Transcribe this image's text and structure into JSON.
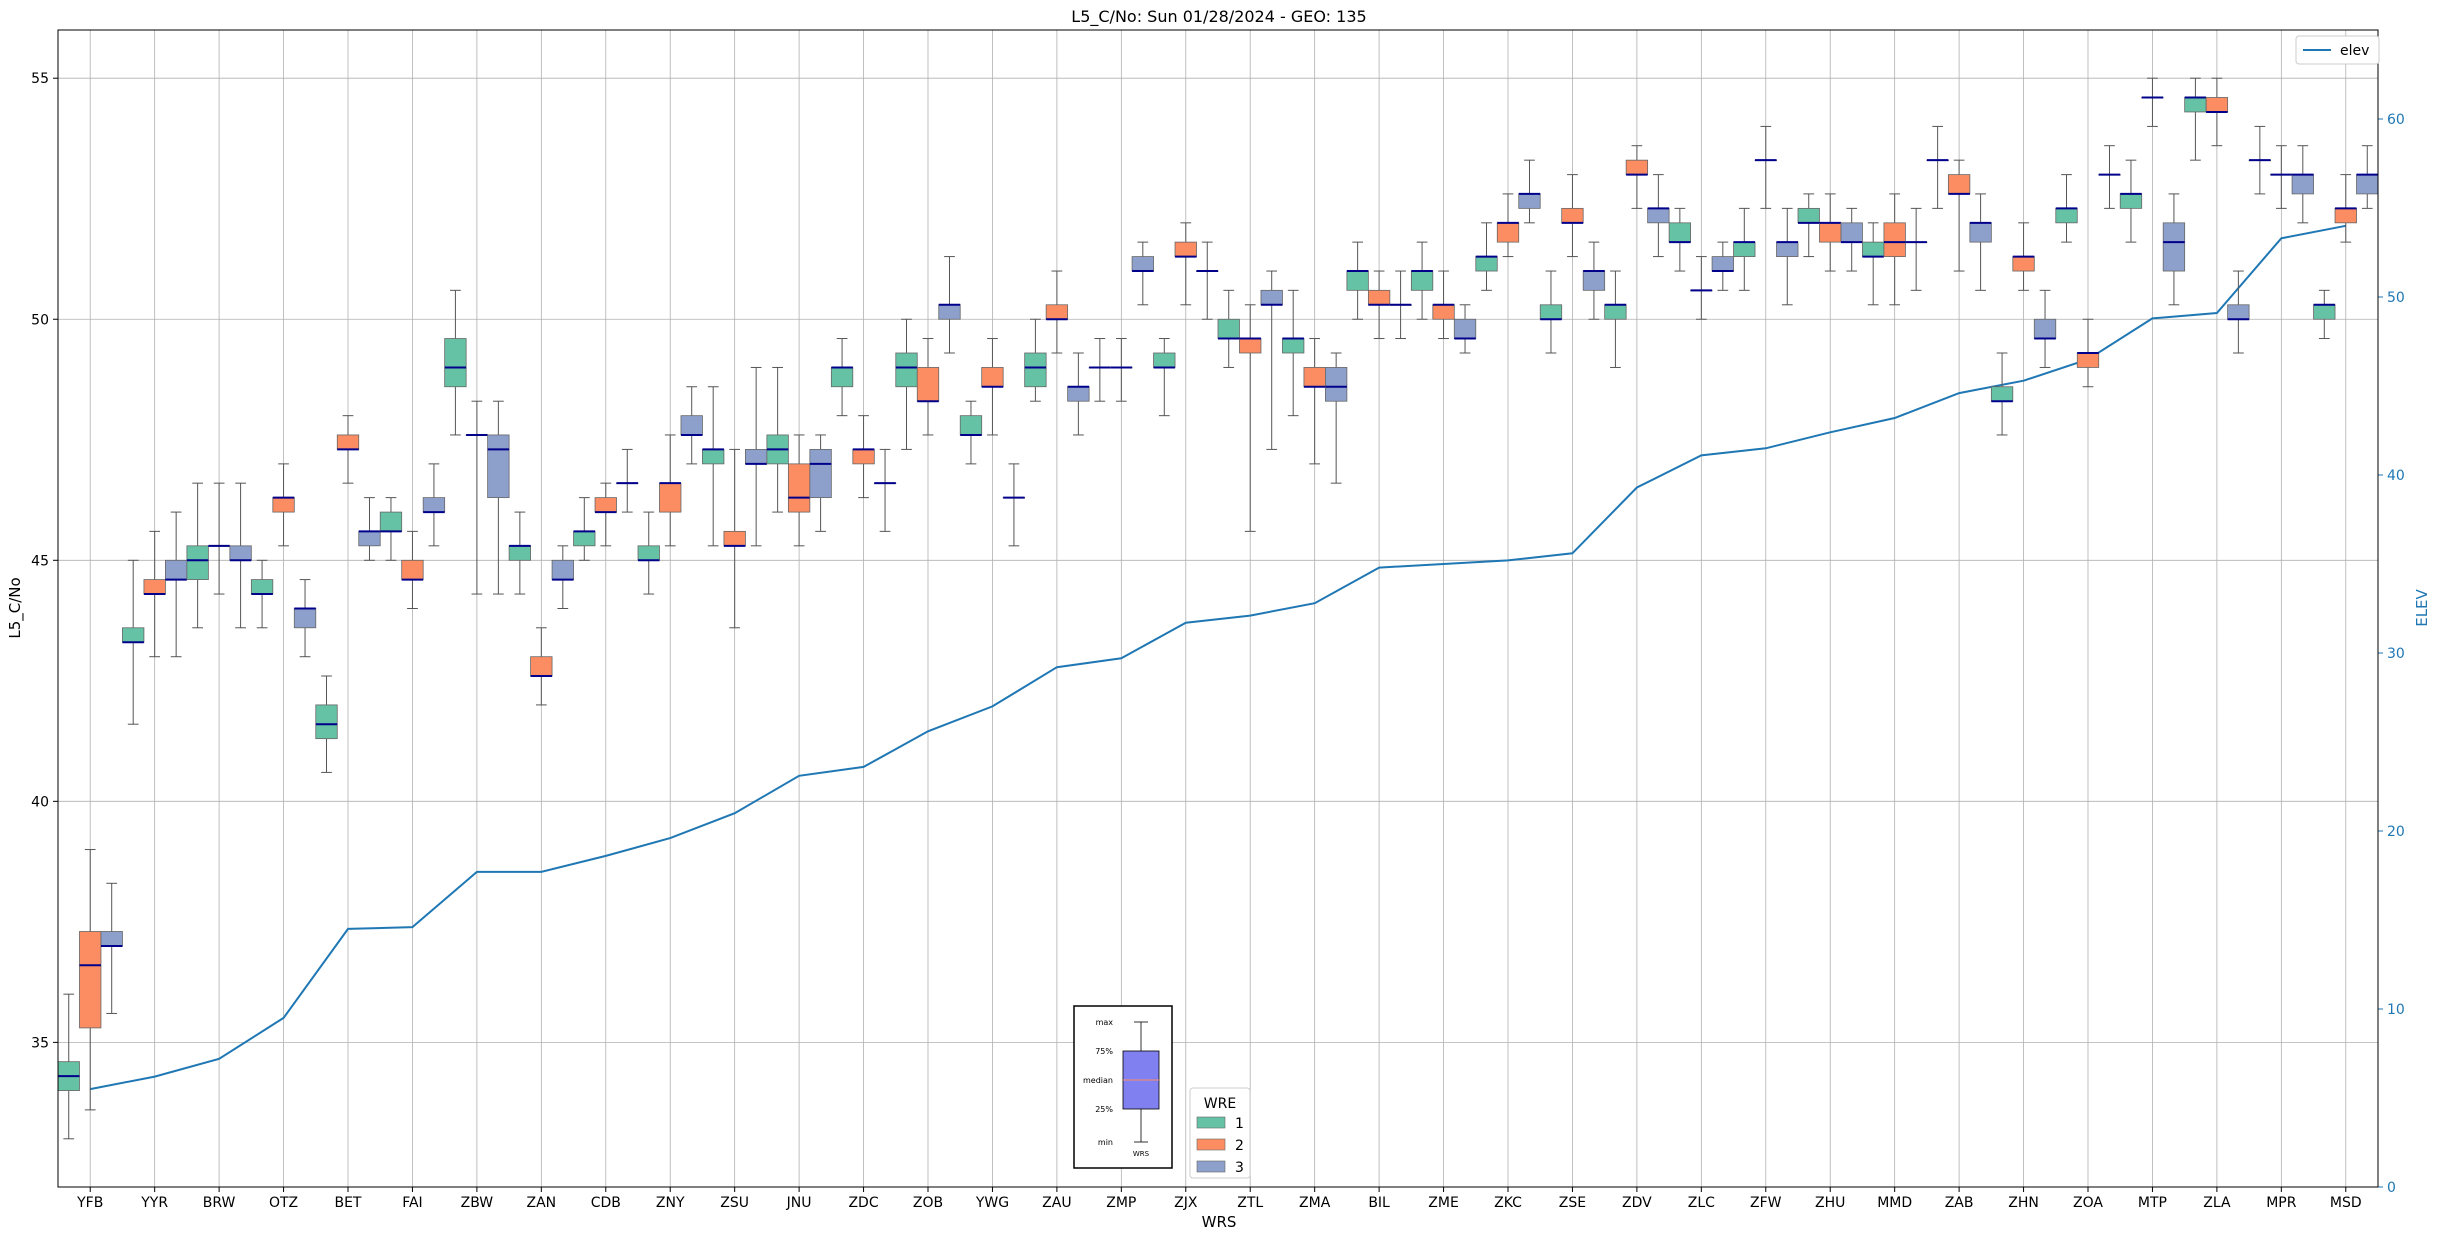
{
  "chart_data": {
    "type": "box",
    "title": "L5_C/No: Sun 01/28/2024 - GEO: 135",
    "xlabel": "WRS",
    "ylabel": "L5_C/No",
    "y2label": "ELEV",
    "ylim": [
      32,
      56
    ],
    "y2lim": [
      0,
      65
    ],
    "yticks": [
      35,
      40,
      45,
      50,
      55
    ],
    "y2ticks": [
      0,
      10,
      20,
      30,
      40,
      50,
      60
    ],
    "grid": true,
    "colors": {
      "wre1": "#66c2a5",
      "wre2": "#fc8d62",
      "wre3": "#8da0cb",
      "median": "#00008b",
      "elev": "#1f77b4",
      "axis2": "#1f77b4"
    },
    "categories": [
      "YFB",
      "YYR",
      "BRW",
      "OTZ",
      "BET",
      "FAI",
      "ZBW",
      "ZAN",
      "CDB",
      "ZNY",
      "ZSU",
      "JNU",
      "ZDC",
      "ZOB",
      "YWG",
      "ZAU",
      "ZMP",
      "ZJX",
      "ZTL",
      "ZMA",
      "BIL",
      "ZME",
      "ZKC",
      "ZSE",
      "ZDV",
      "ZLC",
      "ZFW",
      "ZHU",
      "MMD",
      "ZAB",
      "ZHN",
      "ZOA",
      "MTP",
      "ZLA",
      "MPR",
      "MSD"
    ],
    "elev": [
      5.5,
      6.2,
      7.2,
      9.5,
      14.5,
      14.6,
      17.7,
      17.7,
      18.6,
      19.6,
      21.0,
      23.1,
      23.6,
      25.6,
      27.0,
      29.2,
      29.7,
      31.7,
      32.1,
      32.8,
      34.8,
      35.0,
      35.2,
      35.6,
      39.3,
      41.1,
      41.5,
      42.4,
      43.2,
      44.6,
      45.3,
      46.5,
      48.8,
      49.1,
      53.3,
      54.0
    ],
    "legend_series": "elev",
    "legend_location": "upper right",
    "wre_legend": {
      "title": "WRE",
      "items": [
        "1",
        "2",
        "3"
      ]
    },
    "inset_labels": [
      "max",
      "75%",
      "median",
      "25%",
      "min"
    ],
    "inset_xlabel": "WRS",
    "boxes": [
      {
        "wrs": "YFB",
        "wre": 1,
        "min": 33.0,
        "q1": 34.0,
        "median": 34.3,
        "q3": 34.6,
        "max": 36.0
      },
      {
        "wrs": "YFB",
        "wre": 2,
        "min": 33.6,
        "q1": 35.3,
        "median": 36.6,
        "q3": 37.3,
        "max": 39.0
      },
      {
        "wrs": "YFB",
        "wre": 3,
        "min": 35.6,
        "q1": 37.0,
        "median": 37.0,
        "q3": 37.3,
        "max": 38.3
      },
      {
        "wrs": "YYR",
        "wre": 1,
        "min": 41.6,
        "q1": 43.3,
        "median": 43.3,
        "q3": 43.6,
        "max": 45.0
      },
      {
        "wrs": "YYR",
        "wre": 2,
        "min": 43.0,
        "q1": 44.3,
        "median": 44.3,
        "q3": 44.6,
        "max": 45.6
      },
      {
        "wrs": "YYR",
        "wre": 3,
        "min": 43.0,
        "q1": 44.6,
        "median": 44.6,
        "q3": 45.0,
        "max": 46.0
      },
      {
        "wrs": "BRW",
        "wre": 1,
        "min": 43.6,
        "q1": 44.6,
        "median": 45.0,
        "q3": 45.3,
        "max": 46.6
      },
      {
        "wrs": "BRW",
        "wre": 2,
        "min": 44.3,
        "q1": 45.3,
        "median": 45.3,
        "q3": 45.3,
        "max": 46.6
      },
      {
        "wrs": "BRW",
        "wre": 3,
        "min": 43.6,
        "q1": 45.0,
        "median": 45.0,
        "q3": 45.3,
        "max": 46.6
      },
      {
        "wrs": "OTZ",
        "wre": 1,
        "min": 43.6,
        "q1": 44.3,
        "median": 44.3,
        "q3": 44.6,
        "max": 45.0
      },
      {
        "wrs": "OTZ",
        "wre": 2,
        "min": 45.3,
        "q1": 46.0,
        "median": 46.3,
        "q3": 46.3,
        "max": 47.0
      },
      {
        "wrs": "OTZ",
        "wre": 3,
        "min": 43.0,
        "q1": 43.6,
        "median": 44.0,
        "q3": 44.0,
        "max": 44.6
      },
      {
        "wrs": "BET",
        "wre": 1,
        "min": 40.6,
        "q1": 41.3,
        "median": 41.6,
        "q3": 42.0,
        "max": 42.6
      },
      {
        "wrs": "BET",
        "wre": 2,
        "min": 46.6,
        "q1": 47.3,
        "median": 47.3,
        "q3": 47.6,
        "max": 48.0
      },
      {
        "wrs": "BET",
        "wre": 3,
        "min": 45.0,
        "q1": 45.3,
        "median": 45.6,
        "q3": 45.6,
        "max": 46.3
      },
      {
        "wrs": "FAI",
        "wre": 1,
        "min": 45.0,
        "q1": 45.6,
        "median": 45.6,
        "q3": 46.0,
        "max": 46.3
      },
      {
        "wrs": "FAI",
        "wre": 2,
        "min": 44.0,
        "q1": 44.6,
        "median": 44.6,
        "q3": 45.0,
        "max": 45.6
      },
      {
        "wrs": "FAI",
        "wre": 3,
        "min": 45.3,
        "q1": 46.0,
        "median": 46.0,
        "q3": 46.3,
        "max": 47.0
      },
      {
        "wrs": "ZBW",
        "wre": 1,
        "min": 47.6,
        "q1": 48.6,
        "median": 49.0,
        "q3": 49.6,
        "max": 50.6
      },
      {
        "wrs": "ZBW",
        "wre": 2,
        "min": 44.3,
        "q1": 47.6,
        "median": 47.6,
        "q3": 47.6,
        "max": 48.3
      },
      {
        "wrs": "ZBW",
        "wre": 3,
        "min": 44.3,
        "q1": 46.3,
        "median": 47.3,
        "q3": 47.6,
        "max": 48.3
      },
      {
        "wrs": "ZAN",
        "wre": 1,
        "min": 44.3,
        "q1": 45.0,
        "median": 45.3,
        "q3": 45.3,
        "max": 46.0
      },
      {
        "wrs": "ZAN",
        "wre": 2,
        "min": 42.0,
        "q1": 42.6,
        "median": 42.6,
        "q3": 43.0,
        "max": 43.6
      },
      {
        "wrs": "ZAN",
        "wre": 3,
        "min": 44.0,
        "q1": 44.6,
        "median": 44.6,
        "q3": 45.0,
        "max": 45.3
      },
      {
        "wrs": "CDB",
        "wre": 1,
        "min": 45.0,
        "q1": 45.3,
        "median": 45.6,
        "q3": 45.6,
        "max": 46.3
      },
      {
        "wrs": "CDB",
        "wre": 2,
        "min": 45.3,
        "q1": 46.0,
        "median": 46.0,
        "q3": 46.3,
        "max": 46.6
      },
      {
        "wrs": "CDB",
        "wre": 3,
        "min": 46.0,
        "q1": 46.6,
        "median": 46.6,
        "q3": 46.6,
        "max": 47.3
      },
      {
        "wrs": "ZNY",
        "wre": 1,
        "min": 44.3,
        "q1": 45.0,
        "median": 45.0,
        "q3": 45.3,
        "max": 46.0
      },
      {
        "wrs": "ZNY",
        "wre": 2,
        "min": 45.3,
        "q1": 46.0,
        "median": 46.6,
        "q3": 46.6,
        "max": 47.6
      },
      {
        "wrs": "ZNY",
        "wre": 3,
        "min": 47.0,
        "q1": 47.6,
        "median": 47.6,
        "q3": 48.0,
        "max": 48.6
      },
      {
        "wrs": "ZSU",
        "wre": 1,
        "min": 45.3,
        "q1": 47.0,
        "median": 47.3,
        "q3": 47.3,
        "max": 48.6
      },
      {
        "wrs": "ZSU",
        "wre": 2,
        "min": 43.6,
        "q1": 45.3,
        "median": 45.3,
        "q3": 45.6,
        "max": 47.3
      },
      {
        "wrs": "ZSU",
        "wre": 3,
        "min": 45.3,
        "q1": 47.0,
        "median": 47.0,
        "q3": 47.3,
        "max": 49.0
      },
      {
        "wrs": "JNU",
        "wre": 1,
        "min": 46.0,
        "q1": 47.0,
        "median": 47.3,
        "q3": 47.6,
        "max": 49.0
      },
      {
        "wrs": "JNU",
        "wre": 2,
        "min": 45.3,
        "q1": 46.0,
        "median": 46.3,
        "q3": 47.0,
        "max": 47.6
      },
      {
        "wrs": "JNU",
        "wre": 3,
        "min": 45.6,
        "q1": 46.3,
        "median": 47.0,
        "q3": 47.3,
        "max": 47.6
      },
      {
        "wrs": "ZDC",
        "wre": 1,
        "min": 48.0,
        "q1": 48.6,
        "median": 49.0,
        "q3": 49.0,
        "max": 49.6
      },
      {
        "wrs": "ZDC",
        "wre": 2,
        "min": 46.3,
        "q1": 47.0,
        "median": 47.3,
        "q3": 47.3,
        "max": 48.0
      },
      {
        "wrs": "ZDC",
        "wre": 3,
        "min": 45.6,
        "q1": 46.6,
        "median": 46.6,
        "q3": 46.6,
        "max": 47.3
      },
      {
        "wrs": "ZOB",
        "wre": 1,
        "min": 47.3,
        "q1": 48.6,
        "median": 49.0,
        "q3": 49.3,
        "max": 50.0
      },
      {
        "wrs": "ZOB",
        "wre": 2,
        "min": 47.6,
        "q1": 48.3,
        "median": 48.3,
        "q3": 49.0,
        "max": 49.6
      },
      {
        "wrs": "ZOB",
        "wre": 3,
        "min": 49.3,
        "q1": 50.0,
        "median": 50.3,
        "q3": 50.3,
        "max": 51.3
      },
      {
        "wrs": "YWG",
        "wre": 1,
        "min": 47.0,
        "q1": 47.6,
        "median": 47.6,
        "q3": 48.0,
        "max": 48.3
      },
      {
        "wrs": "YWG",
        "wre": 2,
        "min": 47.6,
        "q1": 48.6,
        "median": 48.6,
        "q3": 49.0,
        "max": 49.6
      },
      {
        "wrs": "YWG",
        "wre": 3,
        "min": 45.3,
        "q1": 46.3,
        "median": 46.3,
        "q3": 46.3,
        "max": 47.0
      },
      {
        "wrs": "ZAU",
        "wre": 1,
        "min": 48.3,
        "q1": 48.6,
        "median": 49.0,
        "q3": 49.3,
        "max": 50.0
      },
      {
        "wrs": "ZAU",
        "wre": 2,
        "min": 49.3,
        "q1": 50.0,
        "median": 50.0,
        "q3": 50.3,
        "max": 51.0
      },
      {
        "wrs": "ZAU",
        "wre": 3,
        "min": 47.6,
        "q1": 48.3,
        "median": 48.6,
        "q3": 48.6,
        "max": 49.3
      },
      {
        "wrs": "ZMP",
        "wre": 1,
        "min": 48.3,
        "q1": 49.0,
        "median": 49.0,
        "q3": 49.0,
        "max": 49.6
      },
      {
        "wrs": "ZMP",
        "wre": 2,
        "min": 48.3,
        "q1": 49.0,
        "median": 49.0,
        "q3": 49.0,
        "max": 49.6
      },
      {
        "wrs": "ZMP",
        "wre": 3,
        "min": 50.3,
        "q1": 51.0,
        "median": 51.0,
        "q3": 51.3,
        "max": 51.6
      },
      {
        "wrs": "ZJX",
        "wre": 1,
        "min": 48.0,
        "q1": 49.0,
        "median": 49.0,
        "q3": 49.3,
        "max": 49.6
      },
      {
        "wrs": "ZJX",
        "wre": 2,
        "min": 50.3,
        "q1": 51.3,
        "median": 51.3,
        "q3": 51.6,
        "max": 52.0
      },
      {
        "wrs": "ZJX",
        "wre": 3,
        "min": 50.0,
        "q1": 51.0,
        "median": 51.0,
        "q3": 51.0,
        "max": 51.6
      },
      {
        "wrs": "ZTL",
        "wre": 1,
        "min": 49.0,
        "q1": 49.6,
        "median": 49.6,
        "q3": 50.0,
        "max": 50.6
      },
      {
        "wrs": "ZTL",
        "wre": 2,
        "min": 45.6,
        "q1": 49.3,
        "median": 49.6,
        "q3": 49.6,
        "max": 50.3
      },
      {
        "wrs": "ZTL",
        "wre": 3,
        "min": 47.3,
        "q1": 50.3,
        "median": 50.3,
        "q3": 50.6,
        "max": 51.0
      },
      {
        "wrs": "ZMA",
        "wre": 1,
        "min": 48.0,
        "q1": 49.3,
        "median": 49.6,
        "q3": 49.6,
        "max": 50.6
      },
      {
        "wrs": "ZMA",
        "wre": 2,
        "min": 47.0,
        "q1": 48.6,
        "median": 48.6,
        "q3": 49.0,
        "max": 49.6
      },
      {
        "wrs": "ZMA",
        "wre": 3,
        "min": 46.6,
        "q1": 48.3,
        "median": 48.6,
        "q3": 49.0,
        "max": 49.3
      },
      {
        "wrs": "BIL",
        "wre": 1,
        "min": 50.0,
        "q1": 50.6,
        "median": 51.0,
        "q3": 51.0,
        "max": 51.6
      },
      {
        "wrs": "BIL",
        "wre": 2,
        "min": 49.6,
        "q1": 50.3,
        "median": 50.3,
        "q3": 50.6,
        "max": 51.0
      },
      {
        "wrs": "BIL",
        "wre": 3,
        "min": 49.6,
        "q1": 50.3,
        "median": 50.3,
        "q3": 50.3,
        "max": 51.0
      },
      {
        "wrs": "ZME",
        "wre": 1,
        "min": 50.0,
        "q1": 50.6,
        "median": 51.0,
        "q3": 51.0,
        "max": 51.6
      },
      {
        "wrs": "ZME",
        "wre": 2,
        "min": 49.6,
        "q1": 50.0,
        "median": 50.3,
        "q3": 50.3,
        "max": 51.0
      },
      {
        "wrs": "ZME",
        "wre": 3,
        "min": 49.3,
        "q1": 49.6,
        "median": 49.6,
        "q3": 50.0,
        "max": 50.3
      },
      {
        "wrs": "ZKC",
        "wre": 1,
        "min": 50.6,
        "q1": 51.0,
        "median": 51.3,
        "q3": 51.3,
        "max": 52.0
      },
      {
        "wrs": "ZKC",
        "wre": 2,
        "min": 51.3,
        "q1": 51.6,
        "median": 52.0,
        "q3": 52.0,
        "max": 52.6
      },
      {
        "wrs": "ZKC",
        "wre": 3,
        "min": 52.0,
        "q1": 52.3,
        "median": 52.6,
        "q3": 52.6,
        "max": 53.3
      },
      {
        "wrs": "ZSE",
        "wre": 1,
        "min": 49.3,
        "q1": 50.0,
        "median": 50.0,
        "q3": 50.3,
        "max": 51.0
      },
      {
        "wrs": "ZSE",
        "wre": 2,
        "min": 51.3,
        "q1": 52.0,
        "median": 52.0,
        "q3": 52.3,
        "max": 53.0
      },
      {
        "wrs": "ZSE",
        "wre": 3,
        "min": 50.0,
        "q1": 50.6,
        "median": 51.0,
        "q3": 51.0,
        "max": 51.6
      },
      {
        "wrs": "ZDV",
        "wre": 1,
        "min": 49.0,
        "q1": 50.0,
        "median": 50.3,
        "q3": 50.3,
        "max": 51.0
      },
      {
        "wrs": "ZDV",
        "wre": 2,
        "min": 52.3,
        "q1": 53.0,
        "median": 53.0,
        "q3": 53.3,
        "max": 53.6
      },
      {
        "wrs": "ZDV",
        "wre": 3,
        "min": 51.3,
        "q1": 52.0,
        "median": 52.3,
        "q3": 52.3,
        "max": 53.0
      },
      {
        "wrs": "ZLC",
        "wre": 1,
        "min": 51.0,
        "q1": 51.6,
        "median": 51.6,
        "q3": 52.0,
        "max": 52.3
      },
      {
        "wrs": "ZLC",
        "wre": 2,
        "min": 50.0,
        "q1": 50.6,
        "median": 50.6,
        "q3": 50.6,
        "max": 51.3
      },
      {
        "wrs": "ZLC",
        "wre": 3,
        "min": 50.6,
        "q1": 51.0,
        "median": 51.0,
        "q3": 51.3,
        "max": 51.6
      },
      {
        "wrs": "ZFW",
        "wre": 1,
        "min": 50.6,
        "q1": 51.3,
        "median": 51.6,
        "q3": 51.6,
        "max": 52.3
      },
      {
        "wrs": "ZFW",
        "wre": 2,
        "min": 52.3,
        "q1": 53.3,
        "median": 53.3,
        "q3": 53.3,
        "max": 54.0
      },
      {
        "wrs": "ZFW",
        "wre": 3,
        "min": 50.3,
        "q1": 51.3,
        "median": 51.6,
        "q3": 51.6,
        "max": 52.3
      },
      {
        "wrs": "ZHU",
        "wre": 1,
        "min": 51.3,
        "q1": 52.0,
        "median": 52.0,
        "q3": 52.3,
        "max": 52.6
      },
      {
        "wrs": "ZHU",
        "wre": 2,
        "min": 51.0,
        "q1": 51.6,
        "median": 52.0,
        "q3": 52.0,
        "max": 52.6
      },
      {
        "wrs": "ZHU",
        "wre": 3,
        "min": 51.0,
        "q1": 51.6,
        "median": 51.6,
        "q3": 52.0,
        "max": 52.3
      },
      {
        "wrs": "MMD",
        "wre": 1,
        "min": 50.3,
        "q1": 51.3,
        "median": 51.3,
        "q3": 51.6,
        "max": 52.0
      },
      {
        "wrs": "MMD",
        "wre": 2,
        "min": 50.3,
        "q1": 51.3,
        "median": 51.6,
        "q3": 52.0,
        "max": 52.6
      },
      {
        "wrs": "MMD",
        "wre": 3,
        "min": 50.6,
        "q1": 51.6,
        "median": 51.6,
        "q3": 51.6,
        "max": 52.3
      },
      {
        "wrs": "ZAB",
        "wre": 1,
        "min": 52.3,
        "q1": 53.3,
        "median": 53.3,
        "q3": 53.3,
        "max": 54.0
      },
      {
        "wrs": "ZAB",
        "wre": 2,
        "min": 51.0,
        "q1": 52.6,
        "median": 52.6,
        "q3": 53.0,
        "max": 53.3
      },
      {
        "wrs": "ZAB",
        "wre": 3,
        "min": 50.6,
        "q1": 51.6,
        "median": 52.0,
        "q3": 52.0,
        "max": 52.6
      },
      {
        "wrs": "ZHN",
        "wre": 1,
        "min": 47.6,
        "q1": 48.3,
        "median": 48.3,
        "q3": 48.6,
        "max": 49.3
      },
      {
        "wrs": "ZHN",
        "wre": 2,
        "min": 50.6,
        "q1": 51.0,
        "median": 51.3,
        "q3": 51.3,
        "max": 52.0
      },
      {
        "wrs": "ZHN",
        "wre": 3,
        "min": 49.0,
        "q1": 49.6,
        "median": 49.6,
        "q3": 50.0,
        "max": 50.6
      },
      {
        "wrs": "ZOA",
        "wre": 1,
        "min": 51.6,
        "q1": 52.0,
        "median": 52.3,
        "q3": 52.3,
        "max": 53.0
      },
      {
        "wrs": "ZOA",
        "wre": 2,
        "min": 48.6,
        "q1": 49.0,
        "median": 49.3,
        "q3": 49.3,
        "max": 50.0
      },
      {
        "wrs": "ZOA",
        "wre": 3,
        "min": 52.3,
        "q1": 53.0,
        "median": 53.0,
        "q3": 53.0,
        "max": 53.6
      },
      {
        "wrs": "MTP",
        "wre": 1,
        "min": 51.6,
        "q1": 52.3,
        "median": 52.6,
        "q3": 52.6,
        "max": 53.3
      },
      {
        "wrs": "MTP",
        "wre": 2,
        "min": 54.0,
        "q1": 54.6,
        "median": 54.6,
        "q3": 54.6,
        "max": 55.0
      },
      {
        "wrs": "MTP",
        "wre": 3,
        "min": 50.3,
        "q1": 51.0,
        "median": 51.6,
        "q3": 52.0,
        "max": 52.6
      },
      {
        "wrs": "ZLA",
        "wre": 1,
        "min": 53.3,
        "q1": 54.3,
        "median": 54.6,
        "q3": 54.6,
        "max": 55.0
      },
      {
        "wrs": "ZLA",
        "wre": 2,
        "min": 53.6,
        "q1": 54.3,
        "median": 54.3,
        "q3": 54.6,
        "max": 55.0
      },
      {
        "wrs": "ZLA",
        "wre": 3,
        "min": 49.3,
        "q1": 50.0,
        "median": 50.0,
        "q3": 50.3,
        "max": 51.0
      },
      {
        "wrs": "MPR",
        "wre": 1,
        "min": 52.6,
        "q1": 53.3,
        "median": 53.3,
        "q3": 53.3,
        "max": 54.0
      },
      {
        "wrs": "MPR",
        "wre": 2,
        "min": 52.3,
        "q1": 53.0,
        "median": 53.0,
        "q3": 53.0,
        "max": 53.6
      },
      {
        "wrs": "MPR",
        "wre": 3,
        "min": 52.0,
        "q1": 52.6,
        "median": 53.0,
        "q3": 53.0,
        "max": 53.6
      },
      {
        "wrs": "MSD",
        "wre": 1,
        "min": 49.6,
        "q1": 50.0,
        "median": 50.3,
        "q3": 50.3,
        "max": 50.6
      },
      {
        "wrs": "MSD",
        "wre": 2,
        "min": 51.6,
        "q1": 52.0,
        "median": 52.3,
        "q3": 52.3,
        "max": 53.0
      },
      {
        "wrs": "MSD",
        "wre": 3,
        "min": 52.3,
        "q1": 52.6,
        "median": 53.0,
        "q3": 53.0,
        "max": 53.6
      }
    ]
  }
}
